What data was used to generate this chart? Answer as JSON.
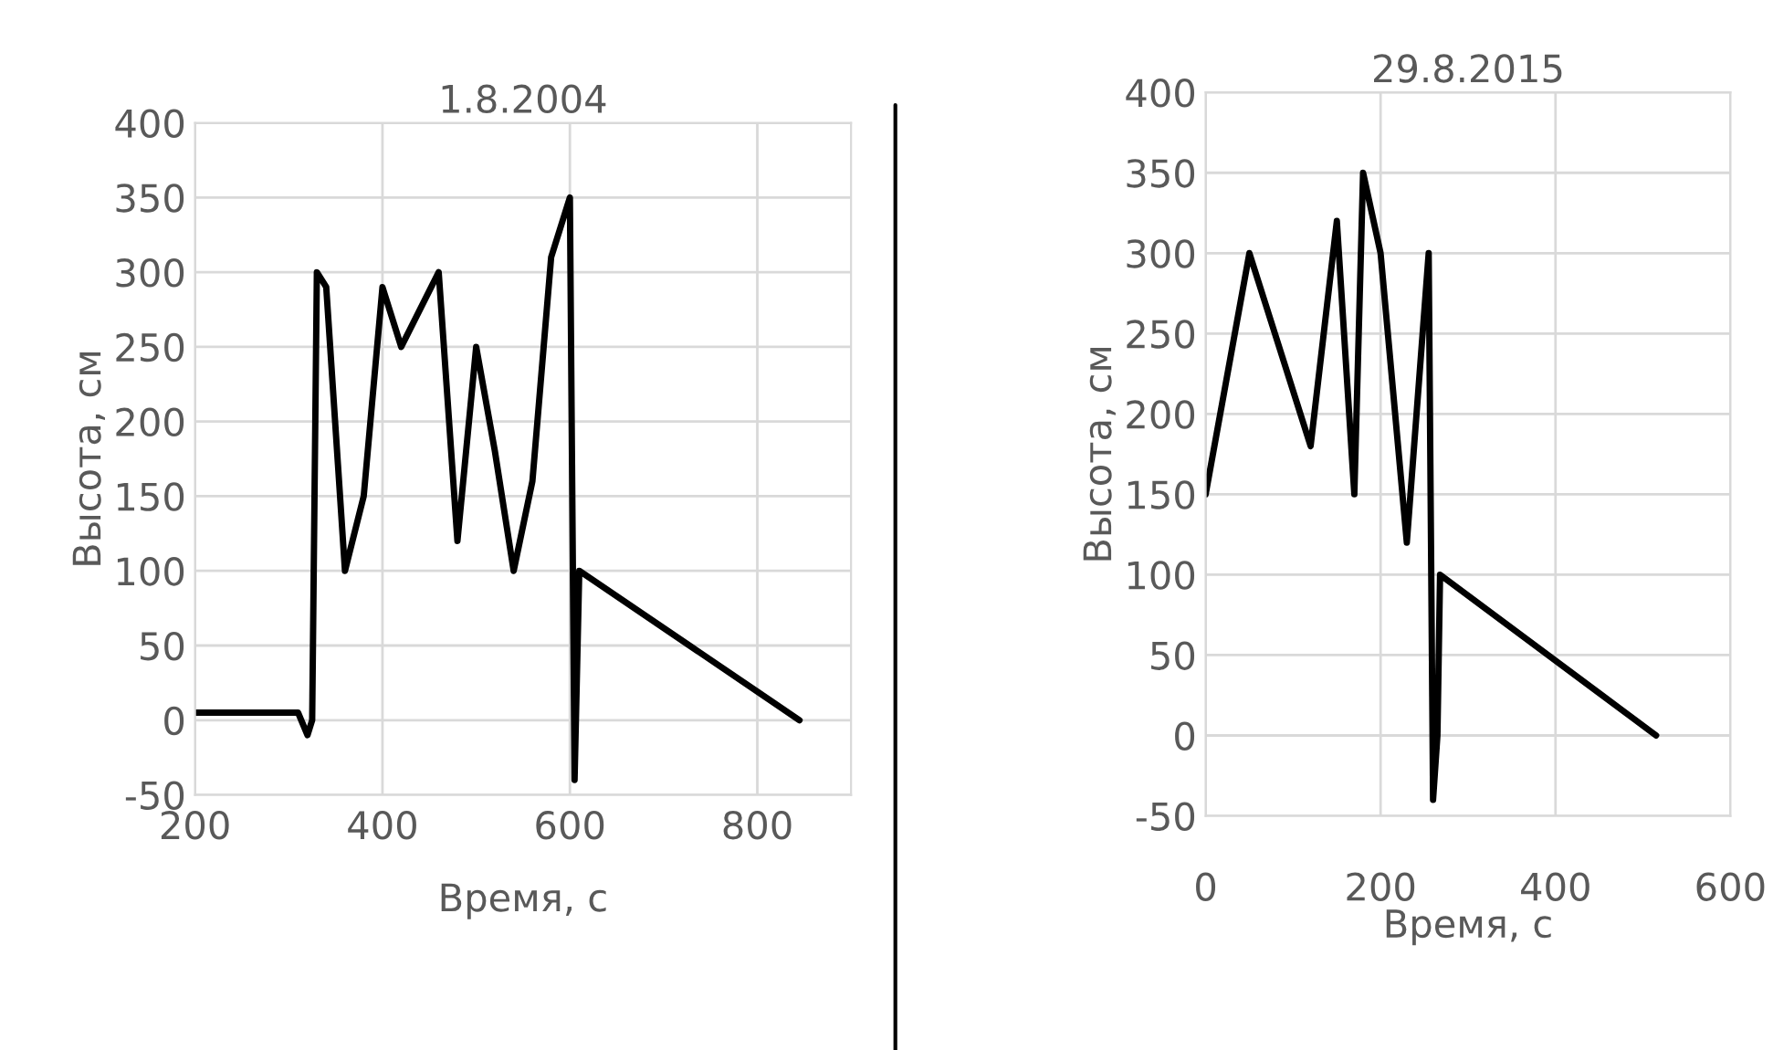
{
  "chart_data": [
    {
      "type": "line",
      "title": "1.8.2004",
      "xlabel": "Время, с",
      "ylabel": "Высота, см",
      "x": [
        200,
        310,
        320,
        325,
        330,
        340,
        360,
        380,
        400,
        420,
        460,
        480,
        500,
        520,
        540,
        560,
        580,
        600,
        605,
        610,
        845
      ],
      "series": [
        {
          "color": "#000000",
          "values": [
            5,
            5,
            -10,
            0,
            300,
            290,
            100,
            150,
            290,
            250,
            300,
            120,
            250,
            180,
            100,
            160,
            310,
            350,
            -40,
            100,
            0
          ]
        }
      ],
      "xlim": [
        200,
        900
      ],
      "xticks": [
        200,
        400,
        600,
        800
      ],
      "ylim": [
        -50,
        400
      ],
      "yticks": [
        -50,
        0,
        50,
        100,
        150,
        200,
        250,
        300,
        350,
        400
      ],
      "grid": true,
      "marker": "none",
      "line_style": "solid"
    },
    {
      "type": "line",
      "title": "29.8.2015",
      "xlabel": "Время, с",
      "ylabel": "Высота, см",
      "x": [
        0,
        50,
        120,
        150,
        170,
        180,
        200,
        230,
        255,
        260,
        265,
        268,
        515
      ],
      "series": [
        {
          "color": "#000000",
          "values": [
            150,
            300,
            180,
            320,
            150,
            350,
            300,
            120,
            300,
            -40,
            0,
            100,
            0
          ]
        }
      ],
      "xlim": [
        0,
        600
      ],
      "xticks": [
        0,
        200,
        400,
        600
      ],
      "ylim": [
        -50,
        400
      ],
      "yticks": [
        -50,
        0,
        50,
        100,
        150,
        200,
        250,
        300,
        350,
        400
      ],
      "grid": true,
      "marker": "none",
      "line_style": "solid"
    }
  ]
}
